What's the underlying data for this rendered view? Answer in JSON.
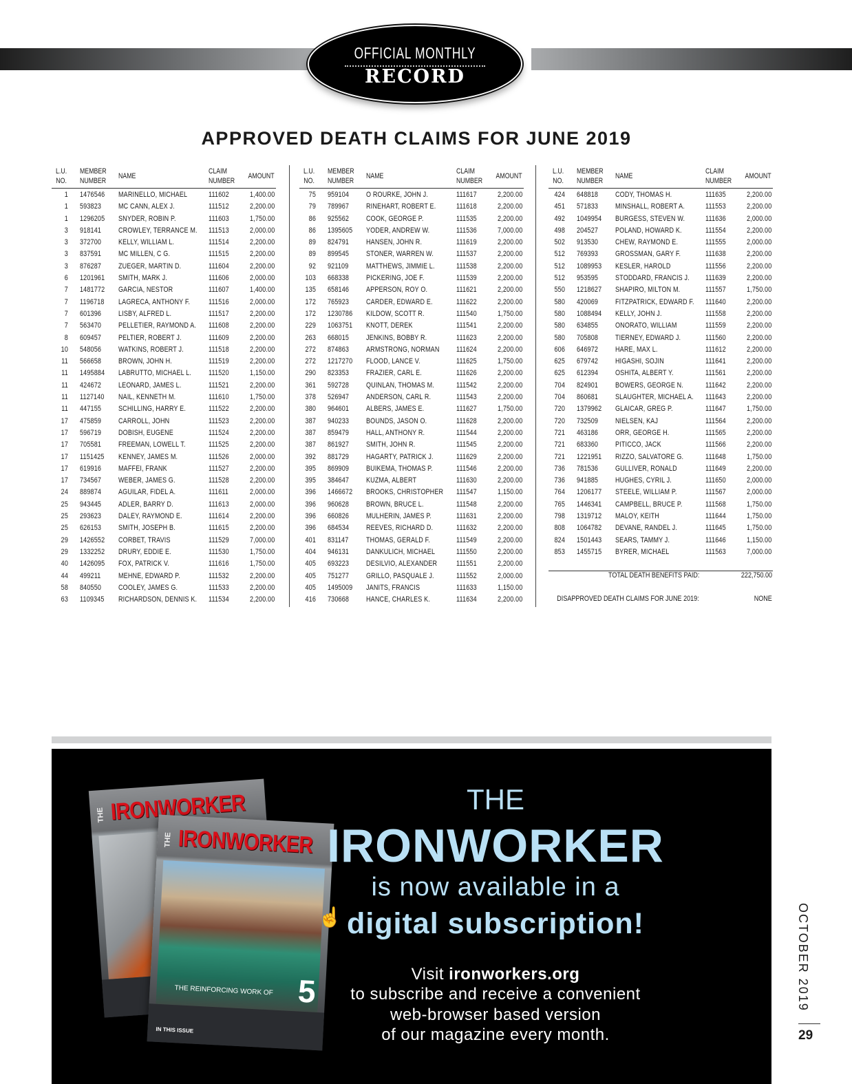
{
  "header": {
    "line1": "OFFICIAL MONTHLY",
    "line2": "RECORD"
  },
  "title": "APPROVED DEATH CLAIMS FOR JUNE 2019",
  "columns": {
    "lu": "L.U.",
    "lu2": "NO.",
    "member": "MEMBER",
    "member2": "NUMBER",
    "name": "NAME",
    "claim": "CLAIM",
    "claim2": "NUMBER",
    "amount": "AMOUNT"
  },
  "tables": [
    [
      [
        "1",
        "1476546",
        "MARINELLO, MICHAEL",
        "111602",
        "1,400.00"
      ],
      [
        "1",
        "593823",
        "MC CANN, ALEX J.",
        "111512",
        "2,200.00"
      ],
      [
        "1",
        "1296205",
        "SNYDER, ROBIN P.",
        "111603",
        "1,750.00"
      ],
      [
        "3",
        "918141",
        "CROWLEY, TERRANCE M.",
        "111513",
        "2,000.00"
      ],
      [
        "3",
        "372700",
        "KELLY, WILLIAM L.",
        "111514",
        "2,200.00"
      ],
      [
        "3",
        "837591",
        "MC MILLEN, C G.",
        "111515",
        "2,200.00"
      ],
      [
        "3",
        "876287",
        "ZUEGER, MARTIN D.",
        "111604",
        "2,200.00"
      ],
      [
        "6",
        "1201961",
        "SMITH, MARK J.",
        "111606",
        "2,000.00"
      ],
      [
        "7",
        "1481772",
        "GARCIA, NESTOR",
        "111607",
        "1,400.00"
      ],
      [
        "7",
        "1196718",
        "LAGRECA, ANTHONY F.",
        "111516",
        "2,000.00"
      ],
      [
        "7",
        "601396",
        "LISBY, ALFRED L.",
        "111517",
        "2,200.00"
      ],
      [
        "7",
        "563470",
        "PELLETIER, RAYMOND A.",
        "111608",
        "2,200.00"
      ],
      [
        "8",
        "609457",
        "PELTIER, ROBERT J.",
        "111609",
        "2,200.00"
      ],
      [
        "10",
        "548056",
        "WATKINS, ROBERT J.",
        "111518",
        "2,200.00"
      ],
      [
        "11",
        "566658",
        "BROWN, JOHN H.",
        "111519",
        "2,200.00"
      ],
      [
        "11",
        "1495884",
        "LABRUTTO, MICHAEL L.",
        "111520",
        "1,150.00"
      ],
      [
        "11",
        "424672",
        "LEONARD, JAMES L.",
        "111521",
        "2,200.00"
      ],
      [
        "11",
        "1127140",
        "NAIL, KENNETH M.",
        "111610",
        "1,750.00"
      ],
      [
        "11",
        "447155",
        "SCHILLING, HARRY E.",
        "111522",
        "2,200.00"
      ],
      [
        "17",
        "475859",
        "CARROLL, JOHN",
        "111523",
        "2,200.00"
      ],
      [
        "17",
        "596719",
        "DOBISH, EUGENE",
        "111524",
        "2,200.00"
      ],
      [
        "17",
        "705581",
        "FREEMAN, LOWELL T.",
        "111525",
        "2,200.00"
      ],
      [
        "17",
        "1151425",
        "KENNEY, JAMES M.",
        "111526",
        "2,000.00"
      ],
      [
        "17",
        "619916",
        "MAFFEI, FRANK",
        "111527",
        "2,200.00"
      ],
      [
        "17",
        "734567",
        "WEBER, JAMES G.",
        "111528",
        "2,200.00"
      ],
      [
        "24",
        "889874",
        "AGUILAR, FIDEL A.",
        "111611",
        "2,000.00"
      ],
      [
        "25",
        "943445",
        "ADLER, BARRY D.",
        "111613",
        "2,000.00"
      ],
      [
        "25",
        "293623",
        "DALEY, RAYMOND E.",
        "111614",
        "2,200.00"
      ],
      [
        "25",
        "626153",
        "SMITH, JOSEPH B.",
        "111615",
        "2,200.00"
      ],
      [
        "29",
        "1426552",
        "CORBET, TRAVIS",
        "111529",
        "7,000.00"
      ],
      [
        "29",
        "1332252",
        "DRURY, EDDIE E.",
        "111530",
        "1,750.00"
      ],
      [
        "40",
        "1426095",
        "FOX, PATRICK V.",
        "111616",
        "1,750.00"
      ],
      [
        "44",
        "499211",
        "MEHNE, EDWARD P.",
        "111532",
        "2,200.00"
      ],
      [
        "58",
        "840550",
        "COOLEY, JAMES G.",
        "111533",
        "2,200.00"
      ],
      [
        "63",
        "1109345",
        "RICHARDSON, DENNIS K.",
        "111534",
        "2,200.00"
      ]
    ],
    [
      [
        "75",
        "959104",
        "O ROURKE, JOHN J.",
        "111617",
        "2,200.00"
      ],
      [
        "79",
        "789967",
        "RINEHART, ROBERT E.",
        "111618",
        "2,200.00"
      ],
      [
        "86",
        "925562",
        "COOK, GEORGE P.",
        "111535",
        "2,200.00"
      ],
      [
        "86",
        "1395605",
        "YODER, ANDREW W.",
        "111536",
        "7,000.00"
      ],
      [
        "89",
        "824791",
        "HANSEN, JOHN R.",
        "111619",
        "2,200.00"
      ],
      [
        "89",
        "899545",
        "STONER, WARREN W.",
        "111537",
        "2,200.00"
      ],
      [
        "92",
        "921109",
        "MATTHEWS, JIMMIE L.",
        "111538",
        "2,200.00"
      ],
      [
        "103",
        "668338",
        "PICKERING, JOE F.",
        "111539",
        "2,200.00"
      ],
      [
        "135",
        "658146",
        "APPERSON, ROY O.",
        "111621",
        "2,200.00"
      ],
      [
        "172",
        "765923",
        "CARDER, EDWARD E.",
        "111622",
        "2,200.00"
      ],
      [
        "172",
        "1230786",
        "KILDOW, SCOTT R.",
        "111540",
        "1,750.00"
      ],
      [
        "229",
        "1063751",
        "KNOTT, DEREK",
        "111541",
        "2,200.00"
      ],
      [
        "263",
        "668015",
        "JENKINS, BOBBY R.",
        "111623",
        "2,200.00"
      ],
      [
        "272",
        "874863",
        "ARMSTRONG, NORMAN",
        "111624",
        "2,200.00"
      ],
      [
        "272",
        "1217270",
        "FLOOD, LANCE V.",
        "111625",
        "1,750.00"
      ],
      [
        "290",
        "823353",
        "FRAZIER, CARL E.",
        "111626",
        "2,200.00"
      ],
      [
        "361",
        "592728",
        "QUINLAN, THOMAS M.",
        "111542",
        "2,200.00"
      ],
      [
        "378",
        "526947",
        "ANDERSON, CARL R.",
        "111543",
        "2,200.00"
      ],
      [
        "380",
        "964601",
        "ALBERS, JAMES E.",
        "111627",
        "1,750.00"
      ],
      [
        "387",
        "940233",
        "BOUNDS, JASON O.",
        "111628",
        "2,200.00"
      ],
      [
        "387",
        "859479",
        "HALL, ANTHONY R.",
        "111544",
        "2,200.00"
      ],
      [
        "387",
        "861927",
        "SMITH, JOHN R.",
        "111545",
        "2,200.00"
      ],
      [
        "392",
        "881729",
        "HAGARTY, PATRICK J.",
        "111629",
        "2,200.00"
      ],
      [
        "395",
        "869909",
        "BUIKEMA, THOMAS P.",
        "111546",
        "2,200.00"
      ],
      [
        "395",
        "384647",
        "KUZMA, ALBERT",
        "111630",
        "2,200.00"
      ],
      [
        "396",
        "1466672",
        "BROOKS, CHRISTOPHER",
        "111547",
        "1,150.00"
      ],
      [
        "396",
        "960628",
        "BROWN, BRUCE L.",
        "111548",
        "2,200.00"
      ],
      [
        "396",
        "660826",
        "MULHERIN, JAMES P.",
        "111631",
        "2,200.00"
      ],
      [
        "396",
        "684534",
        "REEVES, RICHARD D.",
        "111632",
        "2,200.00"
      ],
      [
        "401",
        "831147",
        "THOMAS, GERALD F.",
        "111549",
        "2,200.00"
      ],
      [
        "404",
        "946131",
        "DANKULICH, MICHAEL",
        "111550",
        "2,200.00"
      ],
      [
        "405",
        "693223",
        "DESILVIO, ALEXANDER",
        "111551",
        "2,200.00"
      ],
      [
        "405",
        "751277",
        "GRILLO, PASQUALE J.",
        "111552",
        "2,000.00"
      ],
      [
        "405",
        "1495009",
        "JANITS, FRANCIS",
        "111633",
        "1,150.00"
      ],
      [
        "416",
        "730668",
        "HANCE, CHARLES K.",
        "111634",
        "2,200.00"
      ]
    ],
    [
      [
        "424",
        "648818",
        "CODY, THOMAS H.",
        "111635",
        "2,200.00"
      ],
      [
        "451",
        "571833",
        "MINSHALL, ROBERT A.",
        "111553",
        "2,200.00"
      ],
      [
        "492",
        "1049954",
        "BURGESS, STEVEN W.",
        "111636",
        "2,000.00"
      ],
      [
        "498",
        "204527",
        "POLAND, HOWARD K.",
        "111554",
        "2,200.00"
      ],
      [
        "502",
        "913530",
        "CHEW, RAYMOND E.",
        "111555",
        "2,000.00"
      ],
      [
        "512",
        "769393",
        "GROSSMAN, GARY F.",
        "111638",
        "2,200.00"
      ],
      [
        "512",
        "1089953",
        "KESLER, HAROLD",
        "111556",
        "2,200.00"
      ],
      [
        "512",
        "953595",
        "STODDARD, FRANCIS J.",
        "111639",
        "2,200.00"
      ],
      [
        "550",
        "1218627",
        "SHAPIRO, MILTON M.",
        "111557",
        "1,750.00"
      ],
      [
        "580",
        "420069",
        "FITZPATRICK, EDWARD F.",
        "111640",
        "2,200.00"
      ],
      [
        "580",
        "1088494",
        "KELLY, JOHN J.",
        "111558",
        "2,200.00"
      ],
      [
        "580",
        "634855",
        "ONORATO, WILLIAM",
        "111559",
        "2,200.00"
      ],
      [
        "580",
        "705808",
        "TIERNEY, EDWARD J.",
        "111560",
        "2,200.00"
      ],
      [
        "606",
        "646972",
        "HARE, MAX L.",
        "111612",
        "2,200.00"
      ],
      [
        "625",
        "679742",
        "HIGASHI, SOJIN",
        "111641",
        "2,200.00"
      ],
      [
        "625",
        "612394",
        "OSHITA, ALBERT Y.",
        "111561",
        "2,200.00"
      ],
      [
        "704",
        "824901",
        "BOWERS, GEORGE N.",
        "111642",
        "2,200.00"
      ],
      [
        "704",
        "860681",
        "SLAUGHTER, MICHAEL A.",
        "111643",
        "2,200.00"
      ],
      [
        "720",
        "1379962",
        "GLAICAR, GREG P.",
        "111647",
        "1,750.00"
      ],
      [
        "720",
        "732509",
        "NIELSEN, KAJ",
        "111564",
        "2,200.00"
      ],
      [
        "721",
        "463186",
        "ORR, GEORGE H.",
        "111565",
        "2,200.00"
      ],
      [
        "721",
        "683360",
        "PITICCO, JACK",
        "111566",
        "2,200.00"
      ],
      [
        "721",
        "1221951",
        "RIZZO, SALVATORE G.",
        "111648",
        "1,750.00"
      ],
      [
        "736",
        "781536",
        "GULLIVER, RONALD",
        "111649",
        "2,200.00"
      ],
      [
        "736",
        "941885",
        "HUGHES, CYRIL J.",
        "111650",
        "2,000.00"
      ],
      [
        "764",
        "1206177",
        "STEELE, WILLIAM P.",
        "111567",
        "2,000.00"
      ],
      [
        "765",
        "1446341",
        "CAMPBELL, BRUCE P.",
        "111568",
        "1,750.00"
      ],
      [
        "798",
        "1319712",
        "MALOY, KEITH",
        "111644",
        "1,750.00"
      ],
      [
        "808",
        "1064782",
        "DEVANE, RANDEL J.",
        "111645",
        "1,750.00"
      ],
      [
        "824",
        "1501443",
        "SEARS, TAMMY J.",
        "111646",
        "1,150.00"
      ],
      [
        "853",
        "1455715",
        "BYRER, MICHAEL",
        "111563",
        "7,000.00"
      ]
    ]
  ],
  "totals": {
    "total_label": "TOTAL DEATH BENEFITS PAID:",
    "total_value": "222,750.00",
    "disapproved_label": "DISAPPROVED DEATH CLAIMS FOR JUNE 2019:",
    "disapproved_value": "NONE"
  },
  "ad": {
    "the": "THE",
    "brand": "IRONWORKER",
    "line1": "is now available in a",
    "line2": "digital subscription!",
    "visit_prefix": "Visit ",
    "visit_link": "ironworkers.org",
    "body1": "to subscribe and receive a convenient",
    "body2": "web-browser based version",
    "body3": "of our magazine every month.",
    "accent_color": "#b9e0f5",
    "cover": {
      "the": "THE",
      "masthead": "IRONWORKER",
      "local": "5",
      "caption": "THE REINFORCING WORK OF",
      "in_this_issue": "IN THIS ISSUE"
    }
  },
  "footer": {
    "issue": "OCTOBER 2019",
    "page": "29"
  }
}
